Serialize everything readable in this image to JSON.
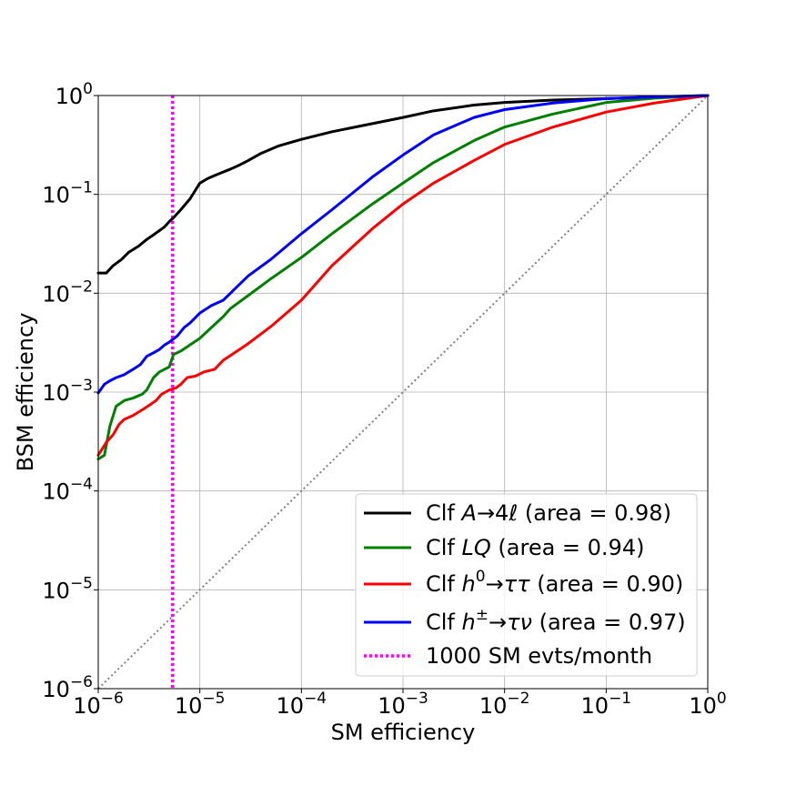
{
  "chart_data": {
    "type": "line",
    "title": "",
    "xlabel": "SM efficiency",
    "ylabel": "BSM efficiency",
    "xscale": "log",
    "yscale": "log",
    "xlim": [
      1e-06,
      1
    ],
    "ylim": [
      1e-06,
      1
    ],
    "grid": true,
    "legend_position": "lower-right",
    "x_ticks": [
      {
        "value": 1e-06,
        "base": "10",
        "exp": "−6"
      },
      {
        "value": 1e-05,
        "base": "10",
        "exp": "−5"
      },
      {
        "value": 0.0001,
        "base": "10",
        "exp": "−4"
      },
      {
        "value": 0.001,
        "base": "10",
        "exp": "−3"
      },
      {
        "value": 0.01,
        "base": "10",
        "exp": "−2"
      },
      {
        "value": 0.1,
        "base": "10",
        "exp": "−1"
      },
      {
        "value": 1,
        "base": "10",
        "exp": "0"
      }
    ],
    "y_ticks": [
      {
        "value": 1e-06,
        "base": "10",
        "exp": "−6"
      },
      {
        "value": 1e-05,
        "base": "10",
        "exp": "−5"
      },
      {
        "value": 0.0001,
        "base": "10",
        "exp": "−4"
      },
      {
        "value": 0.001,
        "base": "10",
        "exp": "−3"
      },
      {
        "value": 0.01,
        "base": "10",
        "exp": "−2"
      },
      {
        "value": 0.1,
        "base": "10",
        "exp": "−1"
      },
      {
        "value": 1,
        "base": "10",
        "exp": "0"
      }
    ],
    "series": [
      {
        "name": "Clf A→4ℓ (area = 0.98)",
        "legend_parts": [
          [
            "Clf ",
            "n"
          ],
          [
            "A",
            "i"
          ],
          [
            "→4",
            "n"
          ],
          [
            "ℓ",
            "i"
          ],
          [
            " (area = 0.98)",
            "n"
          ]
        ],
        "color": "#000000",
        "style": "solid",
        "x": [
          1e-06,
          1.2e-06,
          1.4e-06,
          1.7e-06,
          2e-06,
          2.5e-06,
          3e-06,
          3.5e-06,
          4e-06,
          4.5e-06,
          5e-06,
          5.5e-06,
          6.5e-06,
          8e-06,
          1e-05,
          1.2e-05,
          1.5e-05,
          2e-05,
          2.5e-05,
          3e-05,
          4e-05,
          6e-05,
          0.0001,
          0.0002,
          0.0005,
          0.001,
          0.002,
          0.005,
          0.01,
          0.03,
          0.1,
          0.3,
          1
        ],
        "y": [
          0.016,
          0.016,
          0.019,
          0.022,
          0.026,
          0.03,
          0.035,
          0.039,
          0.043,
          0.047,
          0.053,
          0.058,
          0.07,
          0.09,
          0.13,
          0.145,
          0.16,
          0.18,
          0.2,
          0.22,
          0.26,
          0.31,
          0.36,
          0.43,
          0.52,
          0.6,
          0.7,
          0.8,
          0.85,
          0.9,
          0.93,
          0.96,
          1.0
        ]
      },
      {
        "name": "Clf LQ (area = 0.94)",
        "legend_parts": [
          [
            "Clf ",
            "n"
          ],
          [
            "LQ",
            "i"
          ],
          [
            " (area = 0.94)",
            "n"
          ]
        ],
        "color": "#008000",
        "style": "solid",
        "x": [
          1e-06,
          1.15e-06,
          1.3e-06,
          1.5e-06,
          1.8e-06,
          2.2e-06,
          2.7e-06,
          3e-06,
          3.5e-06,
          4e-06,
          4.5e-06,
          5e-06,
          5.5e-06,
          6.5e-06,
          8e-06,
          1e-05,
          1.3e-05,
          1.7e-05,
          2e-05,
          3e-05,
          5e-05,
          0.0001,
          0.0002,
          0.0005,
          0.001,
          0.002,
          0.005,
          0.01,
          0.03,
          0.1,
          0.3,
          1
        ],
        "y": [
          0.00021,
          0.00023,
          0.00045,
          0.00072,
          0.00082,
          0.00087,
          0.00095,
          0.00105,
          0.0014,
          0.0016,
          0.0017,
          0.0018,
          0.0024,
          0.0026,
          0.003,
          0.0035,
          0.0045,
          0.0058,
          0.007,
          0.0095,
          0.014,
          0.023,
          0.04,
          0.08,
          0.13,
          0.21,
          0.35,
          0.48,
          0.65,
          0.85,
          0.94,
          1.0
        ]
      },
      {
        "name": "Clf h⁰→ττ (area = 0.90)",
        "legend_parts": [
          [
            "Clf ",
            "n"
          ],
          [
            "h",
            "i"
          ],
          [
            "0",
            "sup"
          ],
          [
            "→",
            "n"
          ],
          [
            "ττ",
            "i"
          ],
          [
            " (area = 0.90)",
            "n"
          ]
        ],
        "color": "#ff0000",
        "style": "solid",
        "x": [
          1e-06,
          1.2e-06,
          1.4e-06,
          1.6e-06,
          1.8e-06,
          2.2e-06,
          2.7e-06,
          3.2e-06,
          3.7e-06,
          4.2e-06,
          5e-06,
          5.8e-06,
          6.5e-06,
          7.5e-06,
          9e-06,
          1.1e-05,
          1.4e-05,
          1.7e-05,
          2.2e-05,
          3e-05,
          5e-05,
          0.0001,
          0.0002,
          0.0005,
          0.001,
          0.002,
          0.005,
          0.01,
          0.03,
          0.1,
          0.3,
          1
        ],
        "y": [
          0.00023,
          0.00031,
          0.00037,
          0.00047,
          0.00053,
          0.00058,
          0.00066,
          0.00074,
          0.00082,
          0.00095,
          0.00105,
          0.0011,
          0.0012,
          0.0014,
          0.00145,
          0.0016,
          0.0017,
          0.0021,
          0.0025,
          0.0031,
          0.0046,
          0.0085,
          0.019,
          0.045,
          0.08,
          0.13,
          0.22,
          0.32,
          0.48,
          0.68,
          0.84,
          1.0
        ]
      },
      {
        "name": "Clf h±→τν (area = 0.97)",
        "legend_parts": [
          [
            "Clf ",
            "n"
          ],
          [
            "h",
            "i"
          ],
          [
            "±",
            "sup"
          ],
          [
            "→",
            "n"
          ],
          [
            "τν",
            "i"
          ],
          [
            " (area = 0.97)",
            "n"
          ]
        ],
        "color": "#0000ff",
        "style": "solid",
        "x": [
          1e-06,
          1.15e-06,
          1.3e-06,
          1.5e-06,
          1.8e-06,
          2.2e-06,
          2.6e-06,
          3e-06,
          3.5e-06,
          4e-06,
          4.5e-06,
          5e-06,
          6e-06,
          7e-06,
          8e-06,
          1e-05,
          1.3e-05,
          1.7e-05,
          2.2e-05,
          3e-05,
          5e-05,
          0.0001,
          0.0002,
          0.0005,
          0.001,
          0.002,
          0.005,
          0.01,
          0.03,
          0.1,
          0.3,
          1
        ],
        "y": [
          0.00098,
          0.0012,
          0.0013,
          0.0014,
          0.0015,
          0.0017,
          0.0019,
          0.0023,
          0.0025,
          0.0027,
          0.003,
          0.0032,
          0.0037,
          0.0045,
          0.005,
          0.0063,
          0.0075,
          0.0085,
          0.011,
          0.015,
          0.022,
          0.04,
          0.07,
          0.15,
          0.25,
          0.4,
          0.6,
          0.72,
          0.84,
          0.93,
          0.97,
          1.0
        ]
      },
      {
        "name": "1000 SM evts/month",
        "legend_parts": [
          [
            "1000 SM evts/month",
            "n"
          ]
        ],
        "color": "#ff00ff",
        "style": "dotted",
        "vline_x": 5.4e-06
      }
    ],
    "diagonal": {
      "color": "#808080",
      "style": "dotted"
    }
  }
}
